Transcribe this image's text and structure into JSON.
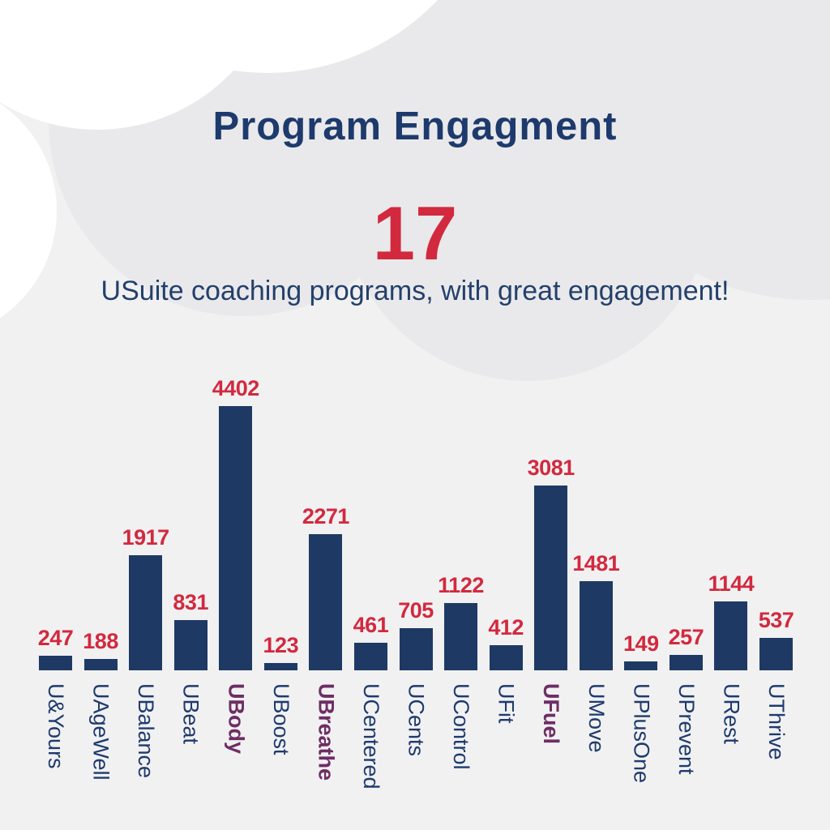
{
  "header": {
    "title": "Program Engagment",
    "stat_number": "17",
    "subtitle": "USuite coaching programs, with great engagement!"
  },
  "colors": {
    "navy_text": "#1e3a6d",
    "red_accent": "#d2293e",
    "purple_highlight": "#6e2d64",
    "bar_navy": "#1e3a64",
    "background": "#f1f1f2",
    "cloud_gray": "#e9e9eb",
    "cloud_white": "#ffffff"
  },
  "chart_data": {
    "type": "bar",
    "title": "Program Engagment",
    "subtitle": "USuite coaching programs, with great engagement!",
    "big_number": "17",
    "categories": [
      "U&Yours",
      "UAgeWell",
      "UBalance",
      "UBeat",
      "UBody",
      "UBoost",
      "UBreathe",
      "UCentered",
      "UCents",
      "UControl",
      "UFit",
      "UFuel",
      "UMove",
      "UPlusOne",
      "UPrevent",
      "URest",
      "UThrive"
    ],
    "values": [
      247,
      188,
      1917,
      831,
      4402,
      123,
      2271,
      461,
      705,
      1122,
      412,
      3081,
      1481,
      149,
      257,
      1144,
      537
    ],
    "highlighted_categories": [
      "UBody",
      "UBreathe",
      "UFuel"
    ],
    "value_labels_shown": true,
    "xlabel": "",
    "ylabel": "",
    "ylim": [
      0,
      4402
    ],
    "grid": false,
    "legend": false,
    "bar_color": "#1e3a64",
    "value_label_color": "#d2293e",
    "category_label_color": "#1e3a6d",
    "highlighted_label_color": "#6e2d64"
  }
}
